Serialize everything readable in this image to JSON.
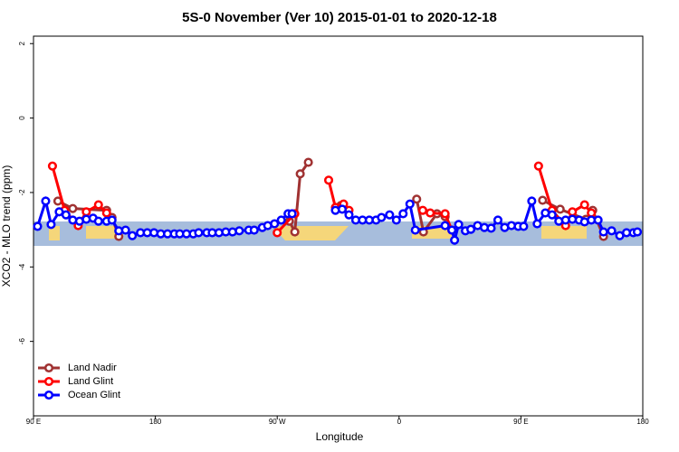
{
  "chart_data": {
    "type": "line",
    "title": "5S-0 November (Ver 10)   2015-01-01 to 2020-12-18",
    "xlabel": "Longitude",
    "ylabel": "XCO2 - MLO trend (ppm)",
    "xlim": [
      90,
      540
    ],
    "ylim": [
      -8,
      2.2
    ],
    "xticks": [
      {
        "value": 90,
        "label": "90 E"
      },
      180,
      {
        "value": 270,
        "label": "90 W"
      },
      {
        "value": 360,
        "label": "0"
      },
      {
        "value": 450,
        "label": "90 E"
      },
      {
        "value": 540,
        "label": "180"
      }
    ],
    "yticks": [
      2,
      0,
      -2,
      -4,
      -6
    ],
    "legend": "bottom-left",
    "series": [
      {
        "name": "Land Nadir",
        "color": "#a03232",
        "x": [
          108,
          119,
          144,
          148,
          153,
          200,
          279,
          283,
          287,
          293,
          305,
          317,
          345,
          373,
          378,
          388,
          394,
          430,
          466,
          479,
          498,
          503,
          511
        ],
        "values": [
          -2.23,
          -2.43,
          -2.48,
          -2.67,
          -3.18,
          null,
          -2.77,
          -3.06,
          -1.5,
          -1.19,
          null,
          -2.35,
          null,
          -2.18,
          -3.06,
          -2.57,
          -2.65,
          null,
          -2.21,
          -2.45,
          -2.72,
          -2.48,
          -3.18
        ]
      },
      {
        "name": "Land Glint",
        "color": "#ff0000",
        "x": [
          104,
          113,
          123,
          129,
          138,
          144,
          200,
          270,
          283,
          295,
          308,
          313,
          319,
          323,
          350,
          377.5,
          383,
          394,
          399,
          430,
          463,
          473,
          483,
          488,
          497,
          502
        ],
        "values": [
          -1.29,
          -2.48,
          -2.89,
          -2.52,
          -2.33,
          -2.55,
          null,
          -3.08,
          -2.57,
          null,
          -1.67,
          -2.4,
          -2.31,
          -2.48,
          null,
          -2.48,
          -2.55,
          -2.57,
          -3.01,
          null,
          -1.29,
          -2.48,
          -2.89,
          -2.52,
          -2.33,
          -2.55
        ]
      },
      {
        "name": "Ocean Glint",
        "color": "#0000ff",
        "x": [
          93,
          99,
          103,
          109,
          114,
          119,
          124,
          129,
          134,
          138,
          144,
          148,
          153,
          158,
          163,
          169,
          174,
          179,
          184,
          189,
          194,
          198,
          203,
          208,
          212,
          218,
          222,
          227,
          232,
          237,
          242,
          249,
          253,
          259,
          263,
          268,
          273,
          278,
          281,
          297,
          313,
          318,
          323,
          328,
          333,
          338,
          343,
          347,
          353,
          358,
          363,
          368,
          372,
          394,
          399,
          401,
          404,
          409,
          413,
          418,
          423,
          428,
          433,
          438,
          443,
          448,
          452,
          458,
          462,
          468,
          473,
          478,
          483,
          488,
          493,
          497,
          502,
          507,
          511,
          517,
          523,
          528,
          533,
          536
        ],
        "values": [
          -2.91,
          -2.23,
          -2.86,
          -2.52,
          -2.6,
          -2.74,
          -2.77,
          -2.72,
          -2.69,
          -2.77,
          -2.77,
          -2.74,
          -3.03,
          -3.01,
          -3.16,
          -3.08,
          -3.08,
          -3.08,
          -3.11,
          -3.11,
          -3.11,
          -3.11,
          -3.11,
          -3.11,
          -3.08,
          -3.08,
          -3.08,
          -3.08,
          -3.06,
          -3.06,
          -3.03,
          -3.01,
          -3.01,
          -2.94,
          -2.89,
          -2.84,
          -2.74,
          -2.57,
          -2.57,
          null,
          -2.48,
          -2.45,
          -2.6,
          -2.74,
          -2.74,
          -2.74,
          -2.74,
          -2.67,
          -2.6,
          -2.74,
          -2.57,
          -2.31,
          -3.01,
          -2.89,
          -3.01,
          -3.28,
          -2.86,
          -3.03,
          -2.99,
          -2.89,
          -2.94,
          -2.96,
          -2.74,
          -2.94,
          -2.89,
          -2.91,
          -2.91,
          -2.23,
          -2.84,
          -2.55,
          -2.6,
          -2.77,
          -2.74,
          -2.72,
          -2.74,
          -2.79,
          -2.74,
          -2.74,
          -3.06,
          -3.03,
          -3.16,
          -3.08,
          -3.08,
          -3.06
        ]
      }
    ]
  }
}
